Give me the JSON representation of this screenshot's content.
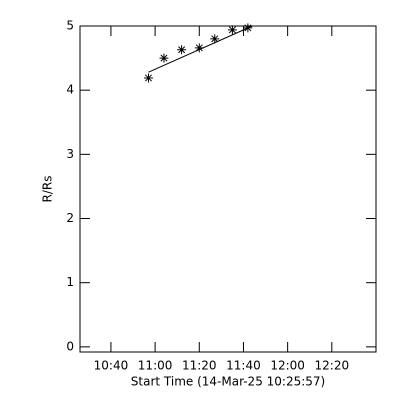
{
  "chart_data": {
    "type": "scatter",
    "y_label": "R/Rs",
    "x_label": "Start Time (14-Mar-25 10:25:57)",
    "x": [
      "10:57",
      "11:04",
      "11:12",
      "11:20",
      "11:27",
      "11:35",
      "11:42"
    ],
    "values": [
      4.19,
      4.5,
      4.63,
      4.66,
      4.8,
      4.94,
      4.97
    ],
    "color": "#000000",
    "fit": {
      "x": [
        "10:57",
        "11:44"
      ],
      "values": [
        4.28,
        5.0
      ]
    },
    "xlim": [
      "10:26",
      "12:40"
    ],
    "xticks": [
      "10:40",
      "11:00",
      "11:20",
      "11:40",
      "12:00",
      "12:20"
    ],
    "ylim": [
      -0.08,
      5
    ],
    "yticks": [
      0,
      1,
      2,
      3,
      4,
      5
    ]
  }
}
